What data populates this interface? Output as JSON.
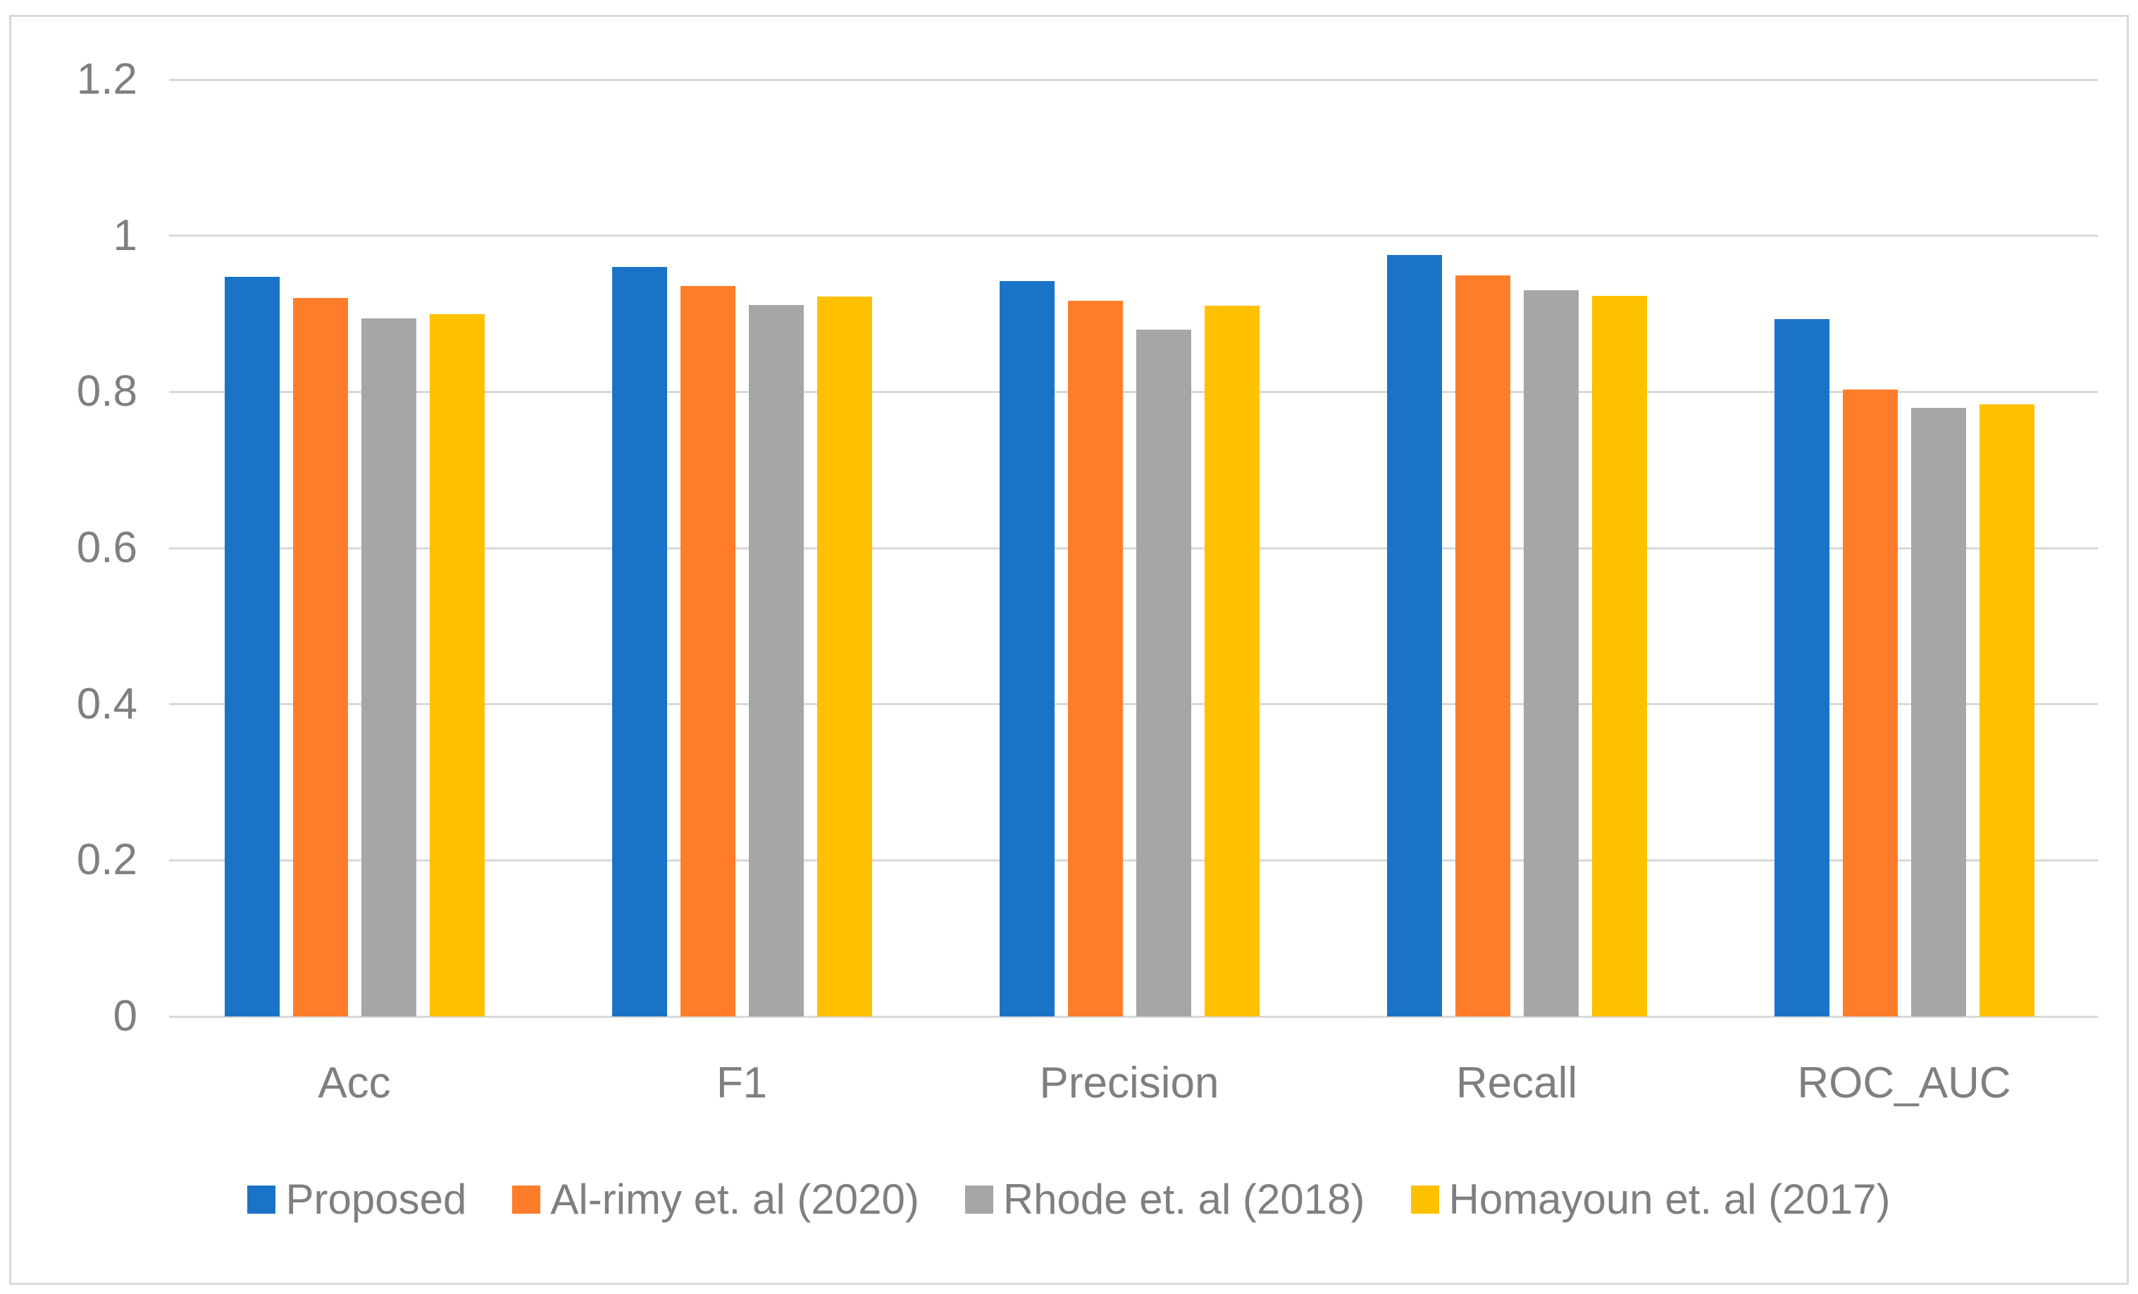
{
  "chart_data": {
    "type": "bar",
    "title": "",
    "xlabel": "",
    "ylabel": "",
    "categories": [
      "Acc",
      "F1",
      "Precision",
      "Recall",
      "ROC_AUC"
    ],
    "series": [
      {
        "name": "Proposed",
        "color": "#1b73c8",
        "values": [
          0.947,
          0.96,
          0.942,
          0.975,
          0.893
        ]
      },
      {
        "name": "Al-rimy et. al (2020)",
        "color": "#ff7d2a",
        "values": [
          0.92,
          0.936,
          0.917,
          0.949,
          0.803
        ]
      },
      {
        "name": "Rhode et. al (2018)",
        "color": "#a6a6a6",
        "values": [
          0.894,
          0.911,
          0.88,
          0.93,
          0.78
        ]
      },
      {
        "name": "Homayoun et. al (2017)",
        "color": "#ffc000",
        "values": [
          0.9,
          0.922,
          0.91,
          0.923,
          0.784
        ]
      }
    ],
    "ylim": [
      0,
      1.2
    ],
    "yticks": [
      0,
      0.2,
      0.4,
      0.6,
      0.8,
      1,
      1.2
    ],
    "ytick_labels": [
      "0",
      "0.2",
      "0.4",
      "0.6",
      "0.8",
      "1",
      "1.2"
    ],
    "grid": true,
    "legend_position": "bottom",
    "frame_color": "#d9d9d9",
    "gridline_color": "#d9d9d9",
    "text_color": "#7f7f7f",
    "background_color": "#ffffff"
  }
}
